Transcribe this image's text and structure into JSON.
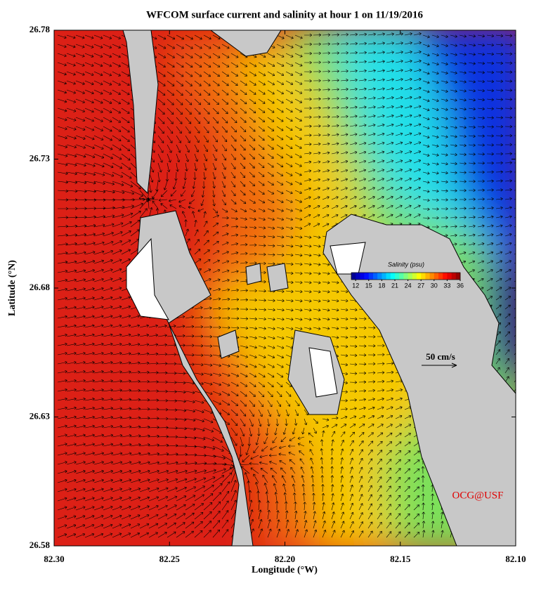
{
  "chart_data": {
    "type": "map",
    "title": "WFCOM surface current and salinity at hour 1 on 11/19/2016",
    "x_label": "Longitude (°W)",
    "y_label": "Latitude (°N)",
    "xlim": [
      82.3,
      82.1
    ],
    "xticks": [
      {
        "value": 82.3,
        "label": "82.30"
      },
      82.25,
      {
        "value": 82.2,
        "label": "82.20"
      },
      82.15,
      {
        "value": 82.1,
        "label": "82.10"
      }
    ],
    "ylim": [
      26.58,
      26.78
    ],
    "yticks": [
      26.58,
      26.63,
      26.68,
      26.73,
      26.78
    ],
    "colorbar": {
      "label": "Salinity (psu)",
      "lim": [
        11,
        36
      ],
      "ticks": [
        12,
        15,
        18,
        21,
        24,
        27,
        30,
        33,
        36
      ]
    },
    "scale_label": "50 cm/s",
    "credit": "OCG@USF"
  }
}
